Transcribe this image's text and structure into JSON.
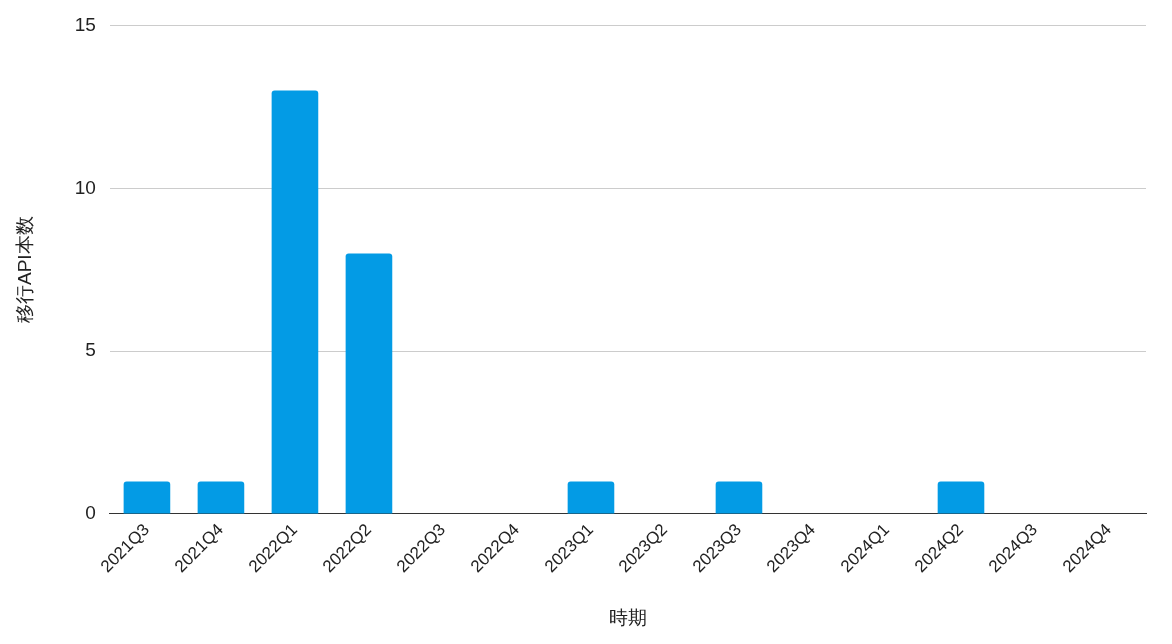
{
  "chart_data": {
    "type": "bar",
    "xlabel": "時期",
    "ylabel": "移行API本数",
    "categories": [
      "2021Q3",
      "2021Q4",
      "2022Q1",
      "2022Q2",
      "2022Q3",
      "2022Q4",
      "2023Q1",
      "2023Q2",
      "2023Q3",
      "2023Q4",
      "2024Q1",
      "2024Q2",
      "2024Q3",
      "2024Q4"
    ],
    "values": [
      1,
      1,
      13,
      8,
      0,
      0,
      1,
      0,
      1,
      0,
      0,
      1,
      0,
      0
    ],
    "color": "#039be5",
    "ylim": [
      0,
      15
    ],
    "yticks": [
      0,
      5,
      10,
      15
    ],
    "grid": "y"
  }
}
